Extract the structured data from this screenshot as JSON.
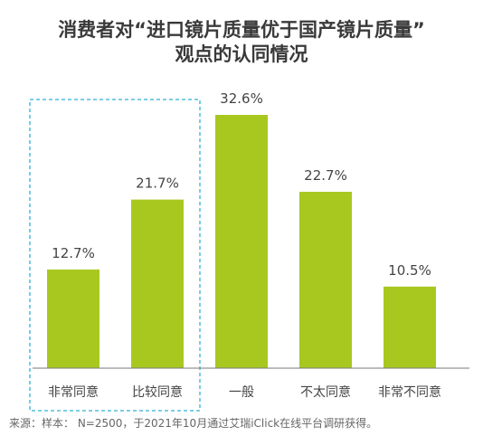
{
  "title_line1": "消费者对“进口镜片质量优于国产镜片质量”",
  "title_line2": "观点的认同情况",
  "source_note": "来源：样本： N=2500，于2021年10月通过艾瑞iClick在线平台调研获得。",
  "colors": {
    "bar": "#a8c820",
    "axis": "#7a7a7a",
    "highlight_box": "#2fb0d8",
    "label": "#444444"
  },
  "chart_data": {
    "type": "bar",
    "title": "消费者对“进口镜片质量优于国产镜片质量”观点的认同情况",
    "categories": [
      "非常同意",
      "比较同意",
      "一般",
      "不太同意",
      "非常不同意"
    ],
    "values": [
      12.7,
      21.7,
      32.6,
      22.7,
      10.5
    ],
    "value_labels": [
      "12.7%",
      "21.7%",
      "32.6%",
      "22.7%",
      "10.5%"
    ],
    "ylim": [
      0,
      32.6
    ],
    "grid": false,
    "legend": "none",
    "xlabel": "",
    "ylabel": "",
    "highlighted_categories": [
      "非常同意",
      "比较同意"
    ]
  }
}
